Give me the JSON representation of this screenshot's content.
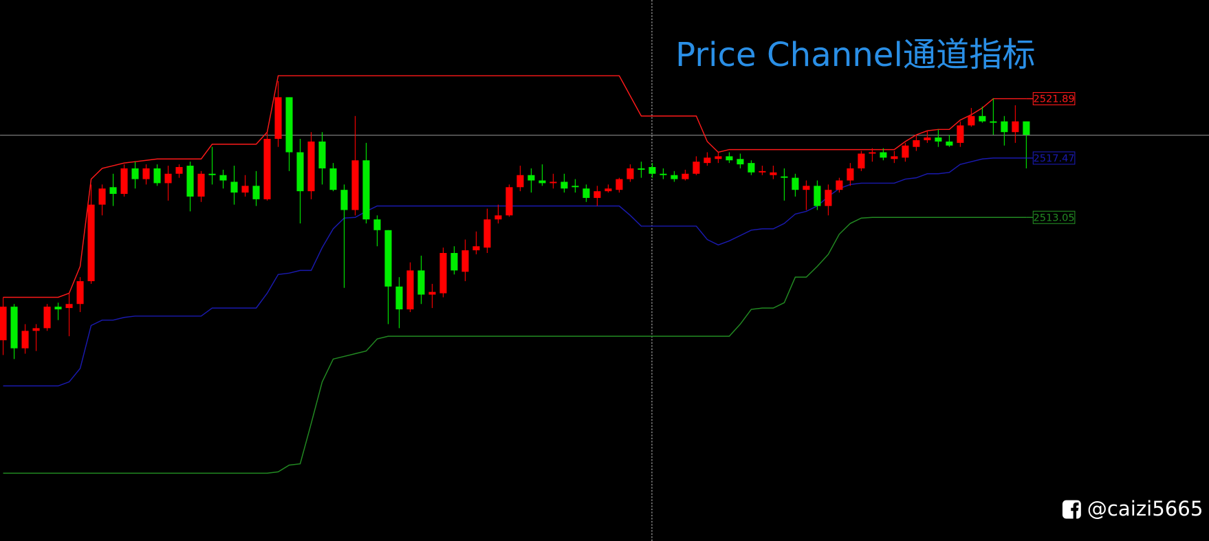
{
  "chart_data": {
    "type": "candlestick",
    "title": "Price Channel通道指标",
    "watermark": "@caizi5665",
    "up_color": "#ff0000",
    "down_color": "#00ee00",
    "ylim": [
      2488.95,
      2529.24
    ],
    "ohlc": [
      [
        2503.9,
        2507.1,
        2502.8,
        2506.4
      ],
      [
        2506.4,
        2506.6,
        2502.5,
        2503.3
      ],
      [
        2503.3,
        2505.1,
        2502.9,
        2504.6
      ],
      [
        2504.6,
        2505.1,
        2503.1,
        2504.8
      ],
      [
        2504.8,
        2506.6,
        2504.6,
        2506.4
      ],
      [
        2506.4,
        2506.7,
        2505.4,
        2506.2
      ],
      [
        2506.3,
        2507.4,
        2504.2,
        2506.6
      ],
      [
        2506.6,
        2508.6,
        2506.0,
        2508.3
      ],
      [
        2508.3,
        2515.5,
        2508.1,
        2514.0
      ],
      [
        2514.0,
        2515.5,
        2513.2,
        2515.2
      ],
      [
        2515.3,
        2516.3,
        2513.9,
        2514.8
      ],
      [
        2514.8,
        2517.0,
        2514.6,
        2516.7
      ],
      [
        2516.7,
        2517.2,
        2515.2,
        2515.9
      ],
      [
        2515.9,
        2517.0,
        2515.5,
        2516.7
      ],
      [
        2516.7,
        2517.0,
        2515.4,
        2515.6
      ],
      [
        2515.6,
        2516.9,
        2514.3,
        2516.3
      ],
      [
        2516.3,
        2517.0,
        2516.0,
        2516.8
      ],
      [
        2516.9,
        2517.2,
        2513.5,
        2514.6
      ],
      [
        2514.6,
        2516.5,
        2514.2,
        2516.3
      ],
      [
        2516.3,
        2518.3,
        2515.5,
        2516.2
      ],
      [
        2516.2,
        2516.6,
        2515.2,
        2515.8
      ],
      [
        2515.7,
        2516.9,
        2514.0,
        2514.9
      ],
      [
        2514.9,
        2516.2,
        2514.6,
        2515.4
      ],
      [
        2515.4,
        2516.5,
        2513.9,
        2514.4
      ],
      [
        2514.4,
        2519.4,
        2514.3,
        2518.9
      ],
      [
        2518.9,
        2523.2,
        2518.3,
        2522.0
      ],
      [
        2522.0,
        2522.0,
        2516.5,
        2517.9
      ],
      [
        2517.9,
        2518.9,
        2512.6,
        2515.0
      ],
      [
        2515.0,
        2519.4,
        2514.4,
        2518.7
      ],
      [
        2518.7,
        2519.4,
        2515.5,
        2516.7
      ],
      [
        2516.7,
        2517.1,
        2515.0,
        2515.1
      ],
      [
        2515.1,
        2515.5,
        2507.8,
        2513.6
      ],
      [
        2513.6,
        2520.6,
        2513.2,
        2517.3
      ],
      [
        2517.3,
        2518.6,
        2512.6,
        2512.9
      ],
      [
        2512.9,
        2513.2,
        2510.9,
        2512.1
      ],
      [
        2512.1,
        2512.1,
        2505.1,
        2507.9
      ],
      [
        2507.9,
        2508.6,
        2504.8,
        2506.2
      ],
      [
        2506.2,
        2509.7,
        2506.0,
        2509.1
      ],
      [
        2509.1,
        2510.2,
        2506.6,
        2507.3
      ],
      [
        2507.3,
        2508.1,
        2506.3,
        2507.5
      ],
      [
        2507.4,
        2510.8,
        2507.1,
        2510.4
      ],
      [
        2510.4,
        2510.9,
        2508.8,
        2509.1
      ],
      [
        2509.0,
        2511.4,
        2508.3,
        2510.6
      ],
      [
        2510.6,
        2512.0,
        2510.3,
        2510.9
      ],
      [
        2510.8,
        2513.7,
        2510.4,
        2512.9
      ],
      [
        2512.9,
        2514.0,
        2512.6,
        2513.2
      ],
      [
        2513.2,
        2515.5,
        2513.1,
        2515.3
      ],
      [
        2515.3,
        2516.9,
        2515.0,
        2516.2
      ],
      [
        2516.2,
        2516.7,
        2514.9,
        2515.8
      ],
      [
        2515.8,
        2517.0,
        2515.4,
        2515.6
      ],
      [
        2515.6,
        2516.3,
        2515.2,
        2515.7
      ],
      [
        2515.7,
        2516.3,
        2514.9,
        2515.2
      ],
      [
        2515.4,
        2515.9,
        2514.9,
        2515.3
      ],
      [
        2515.2,
        2515.5,
        2514.2,
        2514.5
      ],
      [
        2514.5,
        2515.4,
        2513.9,
        2515.0
      ],
      [
        2515.0,
        2515.5,
        2514.9,
        2515.2
      ],
      [
        2515.1,
        2516.0,
        2514.9,
        2515.9
      ],
      [
        2515.9,
        2517.0,
        2515.7,
        2516.7
      ],
      [
        2516.7,
        2517.2,
        2516.0,
        2516.6
      ],
      [
        2516.8,
        2517.1,
        2516.0,
        2516.3
      ],
      [
        2516.3,
        2516.7,
        2515.9,
        2516.2
      ],
      [
        2516.2,
        2516.5,
        2515.7,
        2515.9
      ],
      [
        2515.9,
        2516.6,
        2515.8,
        2516.3
      ],
      [
        2516.3,
        2517.6,
        2516.2,
        2517.2
      ],
      [
        2517.1,
        2517.9,
        2516.9,
        2517.5
      ],
      [
        2517.4,
        2517.9,
        2517.1,
        2517.6
      ],
      [
        2517.6,
        2517.9,
        2517.1,
        2517.3
      ],
      [
        2517.4,
        2517.8,
        2516.7,
        2517.0
      ],
      [
        2517.1,
        2517.3,
        2516.2,
        2516.4
      ],
      [
        2516.4,
        2516.9,
        2516.2,
        2516.5
      ],
      [
        2516.2,
        2516.9,
        2515.9,
        2516.4
      ],
      [
        2516.1,
        2516.7,
        2514.3,
        2516.0
      ],
      [
        2516.0,
        2516.3,
        2514.6,
        2515.1
      ],
      [
        2515.1,
        2515.8,
        2513.6,
        2515.4
      ],
      [
        2515.4,
        2515.8,
        2513.6,
        2513.9
      ],
      [
        2513.9,
        2515.5,
        2513.2,
        2515.1
      ],
      [
        2515.1,
        2516.0,
        2514.9,
        2515.8
      ],
      [
        2515.8,
        2517.1,
        2515.4,
        2516.7
      ],
      [
        2516.7,
        2518.0,
        2516.5,
        2517.8
      ],
      [
        2517.8,
        2518.2,
        2517.2,
        2517.9
      ],
      [
        2517.9,
        2518.2,
        2517.3,
        2517.5
      ],
      [
        2517.4,
        2518.0,
        2517.1,
        2517.6
      ],
      [
        2517.5,
        2518.6,
        2517.2,
        2518.4
      ],
      [
        2518.3,
        2519.2,
        2518.0,
        2518.8
      ],
      [
        2518.8,
        2519.5,
        2518.6,
        2519.0
      ],
      [
        2519.0,
        2519.6,
        2518.3,
        2518.7
      ],
      [
        2518.7,
        2519.2,
        2518.3,
        2518.4
      ],
      [
        2518.6,
        2520.2,
        2518.3,
        2519.9
      ],
      [
        2519.9,
        2521.2,
        2519.8,
        2520.6
      ],
      [
        2520.6,
        2521.3,
        2520.1,
        2520.2
      ],
      [
        2520.2,
        2521.9,
        2519.2,
        2520.1
      ],
      [
        2520.2,
        2520.6,
        2518.4,
        2519.4
      ],
      [
        2519.4,
        2521.4,
        2518.6,
        2520.2
      ],
      [
        2520.2,
        2520.2,
        2516.7,
        2519.2
      ]
    ],
    "series": [
      {
        "color": "#ff1a1a",
        "values": [
          2507.1,
          2507.1,
          2507.1,
          2507.1,
          2507.1,
          2507.1,
          2507.4,
          2509.4,
          2515.9,
          2516.7,
          2516.9,
          2517.1,
          2517.2,
          2517.3,
          2517.4,
          2517.4,
          2517.4,
          2517.4,
          2517.4,
          2518.5,
          2518.5,
          2518.5,
          2518.5,
          2518.5,
          2519.4,
          2523.6,
          2523.6,
          2523.6,
          2523.6,
          2523.6,
          2523.6,
          2523.6,
          2523.6,
          2523.6,
          2523.6,
          2523.6,
          2523.6,
          2523.6,
          2523.6,
          2523.6,
          2523.6,
          2523.6,
          2523.6,
          2523.6,
          2523.6,
          2523.6,
          2523.6,
          2523.6,
          2523.6,
          2523.6,
          2523.6,
          2523.6,
          2523.6,
          2523.6,
          2523.6,
          2523.6,
          2523.6,
          2522.1,
          2520.6,
          2520.6,
          2520.6,
          2520.6,
          2520.6,
          2520.6,
          2518.7,
          2517.9,
          2518.1,
          2518.1,
          2518.1,
          2518.1,
          2518.1,
          2518.1,
          2518.1,
          2518.1,
          2518.1,
          2518.1,
          2518.1,
          2518.1,
          2518.1,
          2518.1,
          2518.1,
          2518.1,
          2518.7,
          2519.2,
          2519.5,
          2519.6,
          2519.6,
          2520.3,
          2520.7,
          2521.2,
          2521.89,
          2521.89,
          2521.89,
          2521.89
        ]
      },
      {
        "color": "#1a1ab0",
        "values": [
          2500.5,
          2500.5,
          2500.5,
          2500.5,
          2500.5,
          2500.5,
          2500.8,
          2501.8,
          2505.0,
          2505.4,
          2505.4,
          2505.6,
          2505.7,
          2505.7,
          2505.7,
          2505.7,
          2505.7,
          2505.7,
          2505.7,
          2506.3,
          2506.3,
          2506.3,
          2506.3,
          2506.3,
          2507.4,
          2508.8,
          2508.9,
          2509.1,
          2509.1,
          2510.8,
          2512.2,
          2513.0,
          2513.05,
          2513.5,
          2513.9,
          2513.9,
          2513.9,
          2513.9,
          2513.9,
          2513.9,
          2513.9,
          2513.9,
          2513.9,
          2513.9,
          2513.9,
          2513.9,
          2513.9,
          2513.9,
          2513.9,
          2513.9,
          2513.9,
          2513.9,
          2513.9,
          2513.9,
          2513.9,
          2513.9,
          2513.9,
          2513.2,
          2512.4,
          2512.4,
          2512.4,
          2512.4,
          2512.4,
          2512.4,
          2511.4,
          2511.0,
          2511.3,
          2511.7,
          2512.1,
          2512.2,
          2512.2,
          2512.6,
          2513.3,
          2513.5,
          2513.9,
          2514.6,
          2515.2,
          2515.5,
          2515.6,
          2515.6,
          2515.6,
          2515.6,
          2515.9,
          2516.0,
          2516.3,
          2516.3,
          2516.4,
          2517.0,
          2517.2,
          2517.4,
          2517.47,
          2517.47,
          2517.47,
          2517.47
        ]
      },
      {
        "color": "#228b22",
        "values": [
          2494.0,
          2494.0,
          2494.0,
          2494.0,
          2494.0,
          2494.0,
          2494.0,
          2494.0,
          2494.0,
          2494.0,
          2494.0,
          2494.0,
          2494.0,
          2494.0,
          2494.0,
          2494.0,
          2494.0,
          2494.0,
          2494.0,
          2494.0,
          2494.0,
          2494.0,
          2494.0,
          2494.0,
          2494.0,
          2494.1,
          2494.6,
          2494.7,
          2497.7,
          2500.8,
          2502.5,
          2502.7,
          2502.9,
          2503.1,
          2504.0,
          2504.2,
          2504.2,
          2504.2,
          2504.2,
          2504.2,
          2504.2,
          2504.2,
          2504.2,
          2504.2,
          2504.2,
          2504.2,
          2504.2,
          2504.2,
          2504.2,
          2504.2,
          2504.2,
          2504.2,
          2504.2,
          2504.2,
          2504.2,
          2504.2,
          2504.2,
          2504.2,
          2504.2,
          2504.2,
          2504.2,
          2504.2,
          2504.2,
          2504.2,
          2504.2,
          2504.2,
          2504.2,
          2505.1,
          2506.2,
          2506.3,
          2506.3,
          2506.7,
          2508.6,
          2508.6,
          2509.4,
          2510.3,
          2511.8,
          2512.6,
          2513.0,
          2513.05,
          2513.05,
          2513.05,
          2513.05,
          2513.05,
          2513.05,
          2513.05,
          2513.05,
          2513.05,
          2513.05,
          2513.05,
          2513.05,
          2513.05,
          2513.05,
          2513.05
        ]
      }
    ]
  }
}
